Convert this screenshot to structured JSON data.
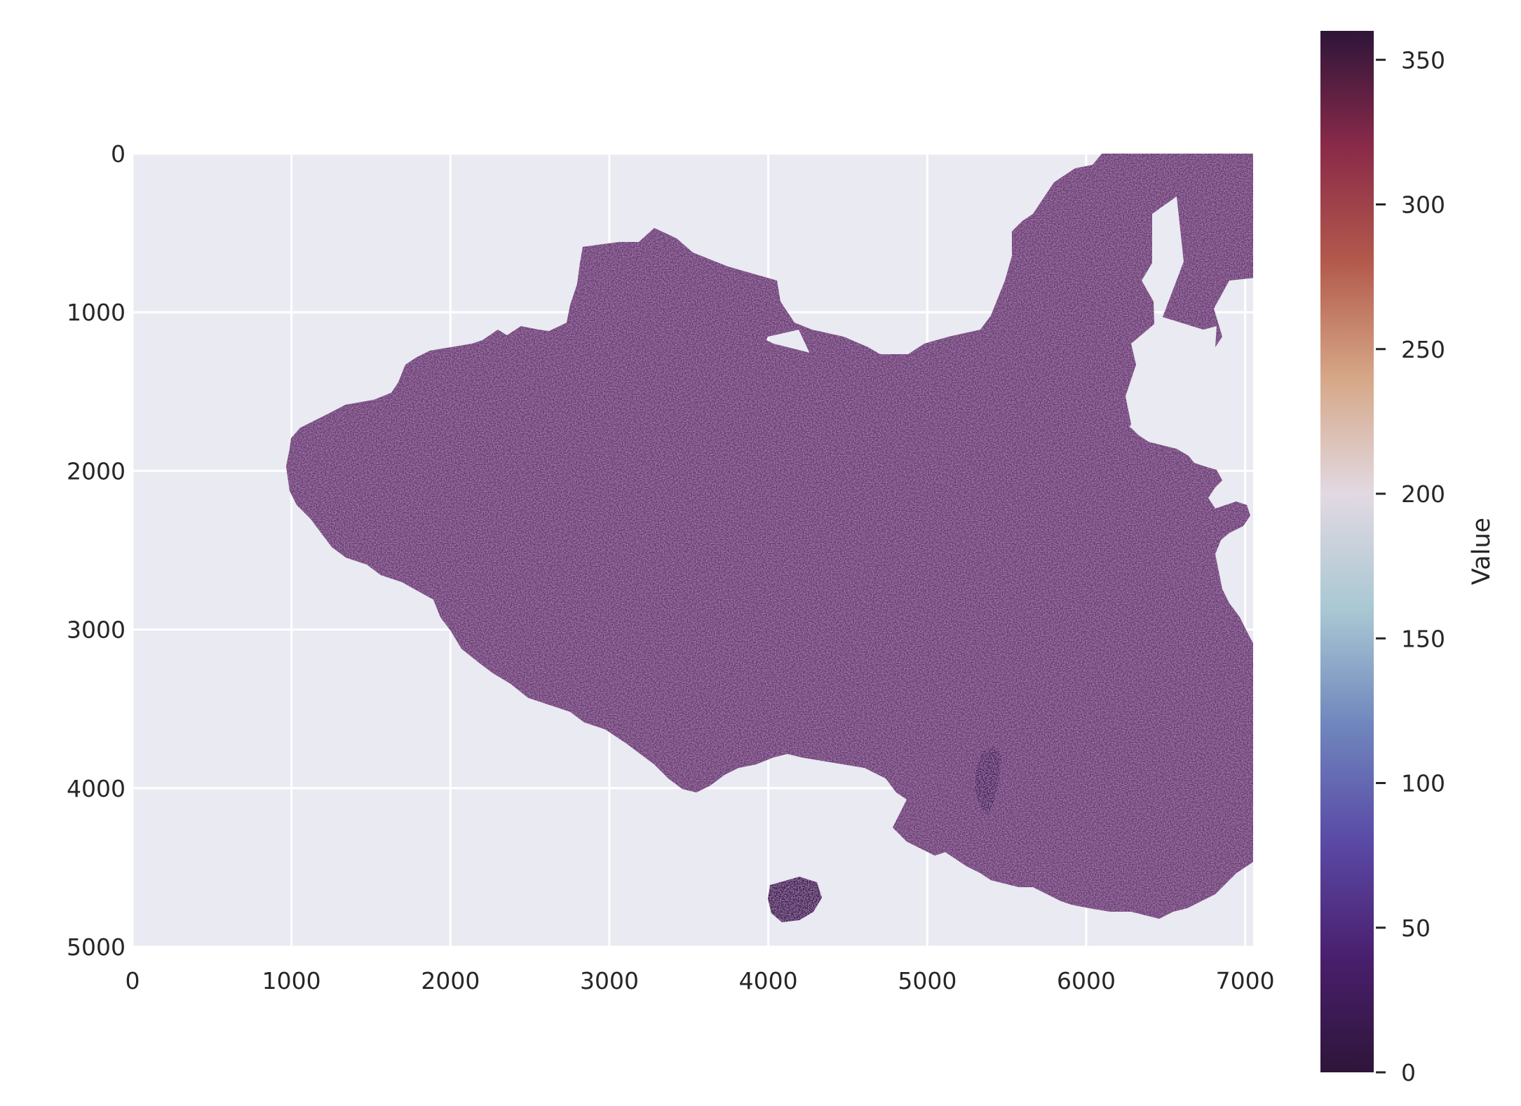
{
  "chart_data": {
    "type": "heatmap",
    "title": "",
    "xlabel": "",
    "ylabel": "",
    "x_ticks": [
      "0",
      "1000",
      "2000",
      "3000",
      "4000",
      "5000",
      "6000",
      "7000"
    ],
    "y_ticks": [
      "0",
      "1000",
      "2000",
      "3000",
      "4000",
      "5000"
    ],
    "xlim": [
      0,
      7050
    ],
    "ylim": [
      5000,
      0
    ],
    "grid": true,
    "colormap": "twilight_shifted",
    "colorbar": {
      "label": "Value",
      "range": [
        0,
        360
      ],
      "ticks": [
        "0",
        "50",
        "100",
        "150",
        "200",
        "250",
        "300",
        "350"
      ],
      "stops": [
        "#2e1539",
        "#4a1f6e",
        "#5a4aa6",
        "#6f86bd",
        "#a9c8d3",
        "#e2d9e2",
        "#d6a787",
        "#b35a4c",
        "#8a2a49",
        "#2e1539"
      ]
    },
    "region": "China",
    "colors": {
      "plot_background": "#eaeaf2",
      "grid": "#ffffff",
      "dominant_fill": "#6b3d6e",
      "edge_fill": "#2e1539"
    }
  }
}
